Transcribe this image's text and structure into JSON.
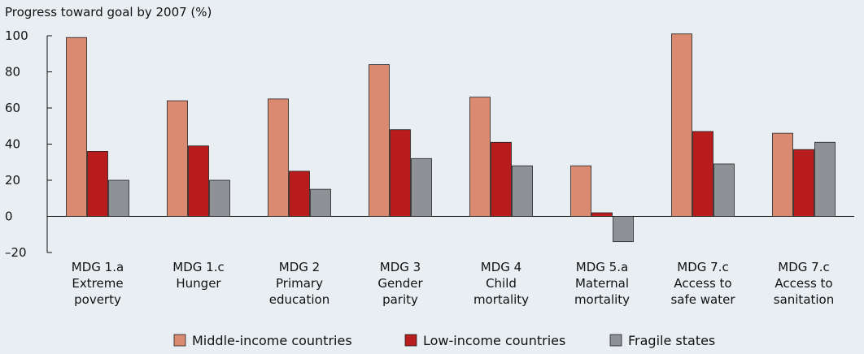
{
  "chart_data": {
    "type": "bar",
    "title": "Progress toward goal by 2007 (%)",
    "xlabel": "",
    "ylabel": "",
    "ylim": [
      -20,
      100
    ],
    "yticks": [
      -20,
      0,
      20,
      40,
      60,
      80,
      100
    ],
    "ytick_labels": [
      "–20",
      "0",
      "20",
      "40",
      "60",
      "80",
      "100"
    ],
    "grid": false,
    "legend_position": "bottom",
    "categories": [
      [
        "MDG 1.a",
        "Extreme",
        "poverty"
      ],
      [
        "MDG 1.c",
        "Hunger"
      ],
      [
        "MDG 2",
        "Primary",
        "education"
      ],
      [
        "MDG 3",
        "Gender",
        "parity"
      ],
      [
        "MDG 4",
        "Child",
        "mortality"
      ],
      [
        "MDG 5.a",
        "Maternal",
        "mortality"
      ],
      [
        "MDG 7.c",
        "Access to",
        "safe water"
      ],
      [
        "MDG 7.c",
        "Access to",
        "sanitation"
      ]
    ],
    "series": [
      {
        "name": "Middle-income countries",
        "color": "#d98a71",
        "values": [
          99,
          64,
          65,
          84,
          66,
          28,
          101,
          46
        ]
      },
      {
        "name": "Low-income countries",
        "color": "#b81c1c",
        "values": [
          36,
          39,
          25,
          48,
          41,
          2,
          47,
          37
        ]
      },
      {
        "name": "Fragile states",
        "color": "#8e9195",
        "values": [
          20,
          20,
          15,
          32,
          28,
          -14,
          29,
          41
        ]
      }
    ]
  }
}
